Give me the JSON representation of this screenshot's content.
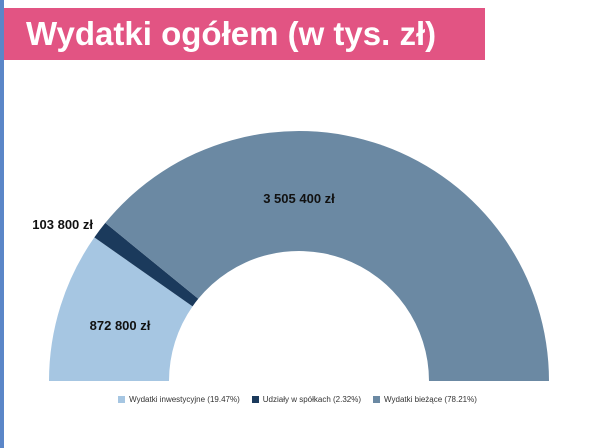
{
  "title": "Wydatki ogółem (w tys. zł)",
  "chart_data": {
    "type": "pie",
    "subtype": "semicircle-donut",
    "series": [
      {
        "name": "Wydatki inwestycyjne (19.47%)",
        "value": 872800,
        "percent": 19.47,
        "label": "872 800 zł",
        "color": "#a6c6e2"
      },
      {
        "name": "Udziały w spółkach (2.32%)",
        "value": 103800,
        "percent": 2.32,
        "label": "103 800 zł",
        "color": "#1b3a5c"
      },
      {
        "name": "Wydatki bieżące (78.21%)",
        "value": 3505400,
        "percent": 78.21,
        "label": "3 505 400 zł",
        "color": "#6b89a3"
      }
    ],
    "legend_position": "bottom"
  }
}
